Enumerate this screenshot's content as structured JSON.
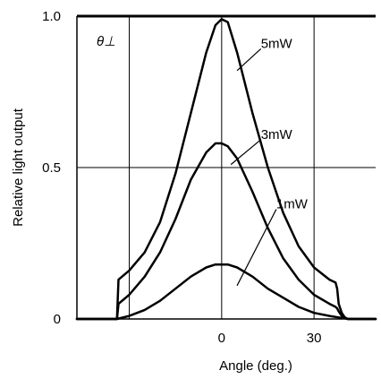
{
  "chart_data": {
    "type": "line",
    "corner_label": "θ⊥",
    "xlabel": "Angle (deg.)",
    "ylabel": "Relative light output",
    "xlim": [
      -47,
      50
    ],
    "ylim": [
      0,
      1.0
    ],
    "x_ticks": [
      {
        "value": 0,
        "label": "0"
      },
      {
        "value": 30,
        "label": "30"
      }
    ],
    "x_gridlines": [
      -30,
      0,
      30
    ],
    "y_ticks": [
      {
        "value": 0,
        "label": "0"
      },
      {
        "value": 0.5,
        "label": "0.5"
      },
      {
        "value": 1.0,
        "label": "1.0"
      }
    ],
    "y_gridlines": [
      0.5
    ],
    "grid": true,
    "series": [
      {
        "name": "5mW",
        "x": [
          -47,
          -34,
          -33.5,
          -30,
          -25,
          -20,
          -15,
          -10,
          -5,
          -2,
          0,
          2,
          5,
          10,
          15,
          20,
          25,
          30,
          35,
          37,
          37.5,
          38,
          39,
          40,
          41,
          50
        ],
        "y": [
          0,
          0,
          0.13,
          0.16,
          0.22,
          0.32,
          0.48,
          0.68,
          0.88,
          0.97,
          0.99,
          0.98,
          0.88,
          0.68,
          0.5,
          0.35,
          0.24,
          0.17,
          0.13,
          0.12,
          0.1,
          0.05,
          0.02,
          0.005,
          0,
          0
        ]
      },
      {
        "name": "3mW",
        "x": [
          -47,
          -34,
          -33.5,
          -30,
          -25,
          -20,
          -15,
          -10,
          -5,
          -2,
          0,
          2,
          5,
          10,
          15,
          20,
          25,
          30,
          35,
          37,
          37.5,
          38,
          39,
          40,
          41,
          50
        ],
        "y": [
          0,
          0,
          0.05,
          0.08,
          0.14,
          0.22,
          0.33,
          0.46,
          0.55,
          0.58,
          0.58,
          0.57,
          0.53,
          0.42,
          0.3,
          0.2,
          0.13,
          0.08,
          0.05,
          0.04,
          0.035,
          0.025,
          0.01,
          0.003,
          0,
          0
        ]
      },
      {
        "name": "1mW",
        "x": [
          -47,
          -34,
          -30,
          -25,
          -20,
          -15,
          -10,
          -5,
          -2,
          0,
          2,
          5,
          10,
          15,
          20,
          25,
          30,
          35,
          38,
          40,
          41,
          50
        ],
        "y": [
          0,
          0,
          0.01,
          0.03,
          0.06,
          0.1,
          0.14,
          0.17,
          0.18,
          0.18,
          0.18,
          0.17,
          0.14,
          0.1,
          0.07,
          0.04,
          0.02,
          0.01,
          0.005,
          0.002,
          0,
          0
        ]
      }
    ],
    "annotations": [
      {
        "text": "5mW",
        "series": "5mW",
        "point_x": 5,
        "point_y": 0.82,
        "label_x": 11,
        "label_y": 0.91
      },
      {
        "text": "3mW",
        "series": "3mW",
        "point_x": 3,
        "point_y": 0.51,
        "label_x": 11,
        "label_y": 0.61
      },
      {
        "text": "1mW",
        "series": "1mW",
        "point_x": 5,
        "point_y": 0.11,
        "label_x": 16,
        "label_y": 0.38
      }
    ]
  }
}
